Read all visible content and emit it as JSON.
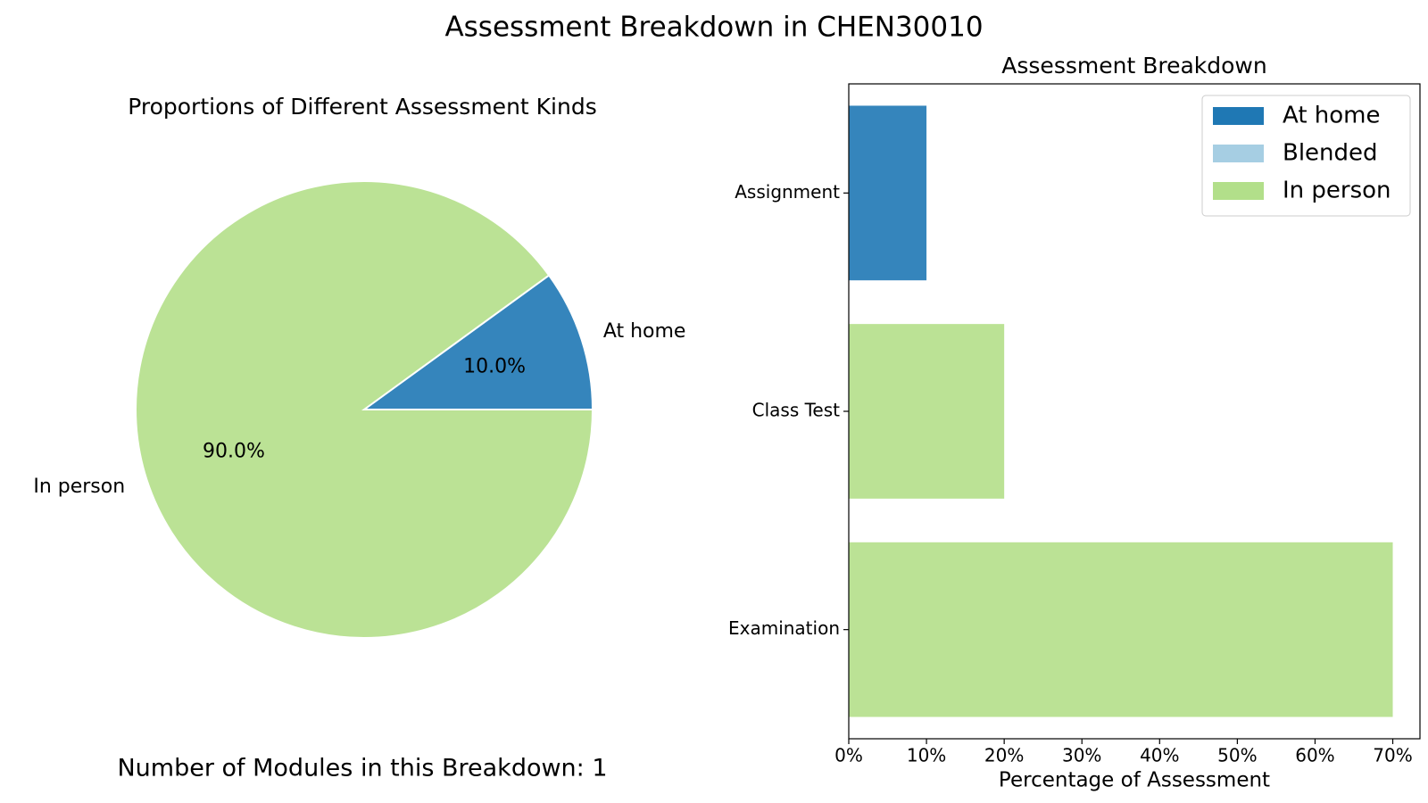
{
  "figure": {
    "title": "Assessment Breakdown in CHEN30010",
    "modules_note": "Number of Modules in this Breakdown: 1"
  },
  "colors": {
    "at_home": "#3585bc",
    "blended": "#a6cee3",
    "in_person": "#bbe295",
    "legend_at_home": "#1f78b4",
    "legend_in_person": "#b2df8a"
  },
  "chart_data": [
    {
      "type": "pie",
      "title": "Proportions of Different Assessment Kinds",
      "slices": [
        {
          "label": "At home",
          "value": 10.0,
          "pct_label": "10.0%",
          "color_key": "at_home"
        },
        {
          "label": "In person",
          "value": 90.0,
          "pct_label": "90.0%",
          "color_key": "in_person"
        }
      ]
    },
    {
      "type": "bar",
      "orientation": "horizontal",
      "title": "Assessment Breakdown",
      "categories": [
        "Assignment",
        "Class Test",
        "Examination"
      ],
      "series": [
        {
          "name": "At home",
          "color_key": "at_home",
          "values": [
            10,
            0,
            0
          ]
        },
        {
          "name": "Blended",
          "color_key": "blended",
          "values": [
            0,
            0,
            0
          ]
        },
        {
          "name": "In person",
          "color_key": "in_person",
          "values": [
            0,
            20,
            70
          ]
        }
      ],
      "xlabel": "Percentage of Assessment",
      "ylabel": "",
      "xlim": [
        0,
        73.5
      ],
      "xticks": [
        0,
        10,
        20,
        30,
        40,
        50,
        60,
        70
      ],
      "xtick_labels": [
        "0%",
        "10%",
        "20%",
        "30%",
        "40%",
        "50%",
        "60%",
        "70%"
      ],
      "legend": {
        "position": "top-right",
        "entries": [
          {
            "label": "At home",
            "color_key": "legend_at_home"
          },
          {
            "label": "Blended",
            "color_key": "blended"
          },
          {
            "label": "In person",
            "color_key": "legend_in_person"
          }
        ]
      },
      "grid": false
    }
  ]
}
